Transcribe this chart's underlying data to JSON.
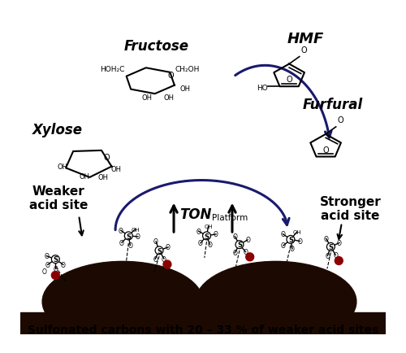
{
  "background_color": "#ffffff",
  "bottom_text": "Sulfonated carbons with 20 – 33 % of weaker acid sites",
  "weaker_label": "Weaker\nacid site",
  "stronger_label": "Stronger\nacid site",
  "fructose_label": "Fructose",
  "xylose_label": "Xylose",
  "hmf_label": "HMF",
  "furfural_label": "Furfural",
  "arrow_color": "#1a1a6e",
  "carbon_color": "#1c0a02",
  "red_dot_color": "#8b0000",
  "figsize": [
    5.0,
    4.35
  ],
  "dpi": 100
}
